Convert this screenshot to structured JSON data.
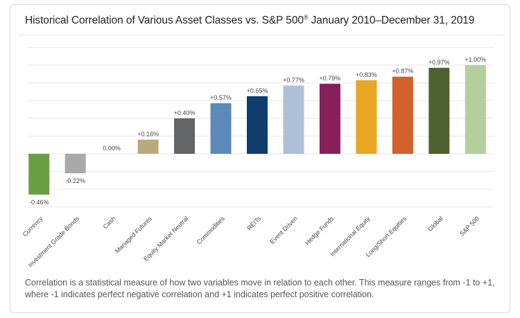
{
  "title_main": "Historical Correlation of Various Asset Classes vs. S&P 500",
  "title_reg": "®",
  "title_period": " January 2010–December 31, 2019",
  "caption": "Correlation is a statistical measure of how two variables move in relation to each other. This measure ranges from -1 to +1, where -1 indicates perfect negative correlation and +1 indicates perfect positive correlation.",
  "chart_data": {
    "type": "bar",
    "title": "Historical Correlation of Various Asset Classes vs. S&P 500® January 2010–December 31, 2019",
    "xlabel": "",
    "ylabel": "",
    "ylim": [
      -0.8,
      1.2
    ],
    "grid": true,
    "categories": [
      "Currency",
      "Investment Grade Bonds",
      "Cash",
      "Managed Futures",
      "Equity Market Neutral",
      "Commodities",
      "REITs",
      "Event Driven",
      "Hedge Funds",
      "International Equity",
      "Long/Short Equities",
      "Global",
      "S&P 500"
    ],
    "values": [
      -0.46,
      -0.22,
      0.0,
      0.16,
      0.4,
      0.57,
      0.65,
      0.77,
      0.79,
      0.83,
      0.87,
      0.97,
      1.0
    ],
    "labels": [
      "-0.46%",
      "-0.22%",
      "0.00%",
      "+0.16%",
      "+0.40%",
      "+0.57%",
      "+0.65%",
      "+0.77%",
      "+0.79%",
      "+0.83%",
      "+0.87%",
      "+0.97%",
      "+1.00%"
    ],
    "colors": [
      "#6a9e42",
      "#a9a9a9",
      "#cfcfcf",
      "#b9aa7a",
      "#636466",
      "#5b8ab8",
      "#0f3d6e",
      "#aebfd8",
      "#861f5a",
      "#e8a623",
      "#d2602a",
      "#4f6130",
      "#b3cf9c"
    ]
  }
}
